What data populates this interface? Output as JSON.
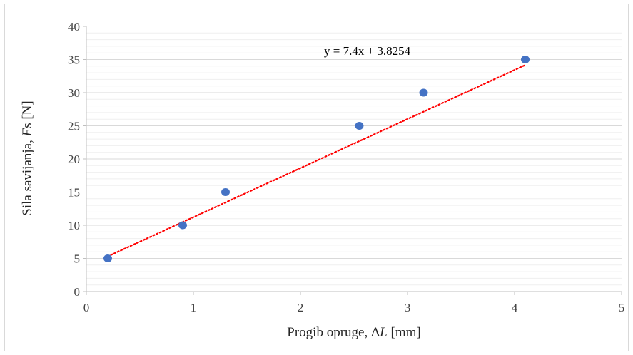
{
  "chart_data": {
    "type": "scatter",
    "title": "",
    "xlabel": {
      "prefix": "Progib opruge, Δ",
      "symbol": "L",
      "suffix": " [mm]"
    },
    "ylabel": {
      "prefix": "Sila savijanja, ",
      "symbol": "F",
      "suffix": "s [N]"
    },
    "xlim": [
      0,
      5
    ],
    "ylim": [
      0,
      40
    ],
    "x_ticks": [
      0,
      1,
      2,
      3,
      4,
      5
    ],
    "y_ticks": [
      0,
      5,
      10,
      15,
      20,
      25,
      30,
      35,
      40
    ],
    "x_tick_labels": [
      "0",
      "1",
      "2",
      "3",
      "4",
      "5"
    ],
    "y_tick_labels": [
      "0",
      "5",
      "10",
      "15",
      "20",
      "25",
      "30",
      "35",
      "40"
    ],
    "gridlines": true,
    "legend": false,
    "series": [
      {
        "x": [
          0.2,
          0.9,
          1.3,
          2.55,
          3.15,
          4.1
        ],
        "y": [
          5,
          10,
          15,
          25,
          30,
          35
        ],
        "color": "#4472c4"
      }
    ],
    "trendline": {
      "slope": 7.4,
      "intercept": 3.8254,
      "x_range": [
        0.2,
        4.1
      ],
      "color": "#ff0000",
      "style": "dotted",
      "equation_label": "y = 7.4x + 3.8254"
    }
  }
}
